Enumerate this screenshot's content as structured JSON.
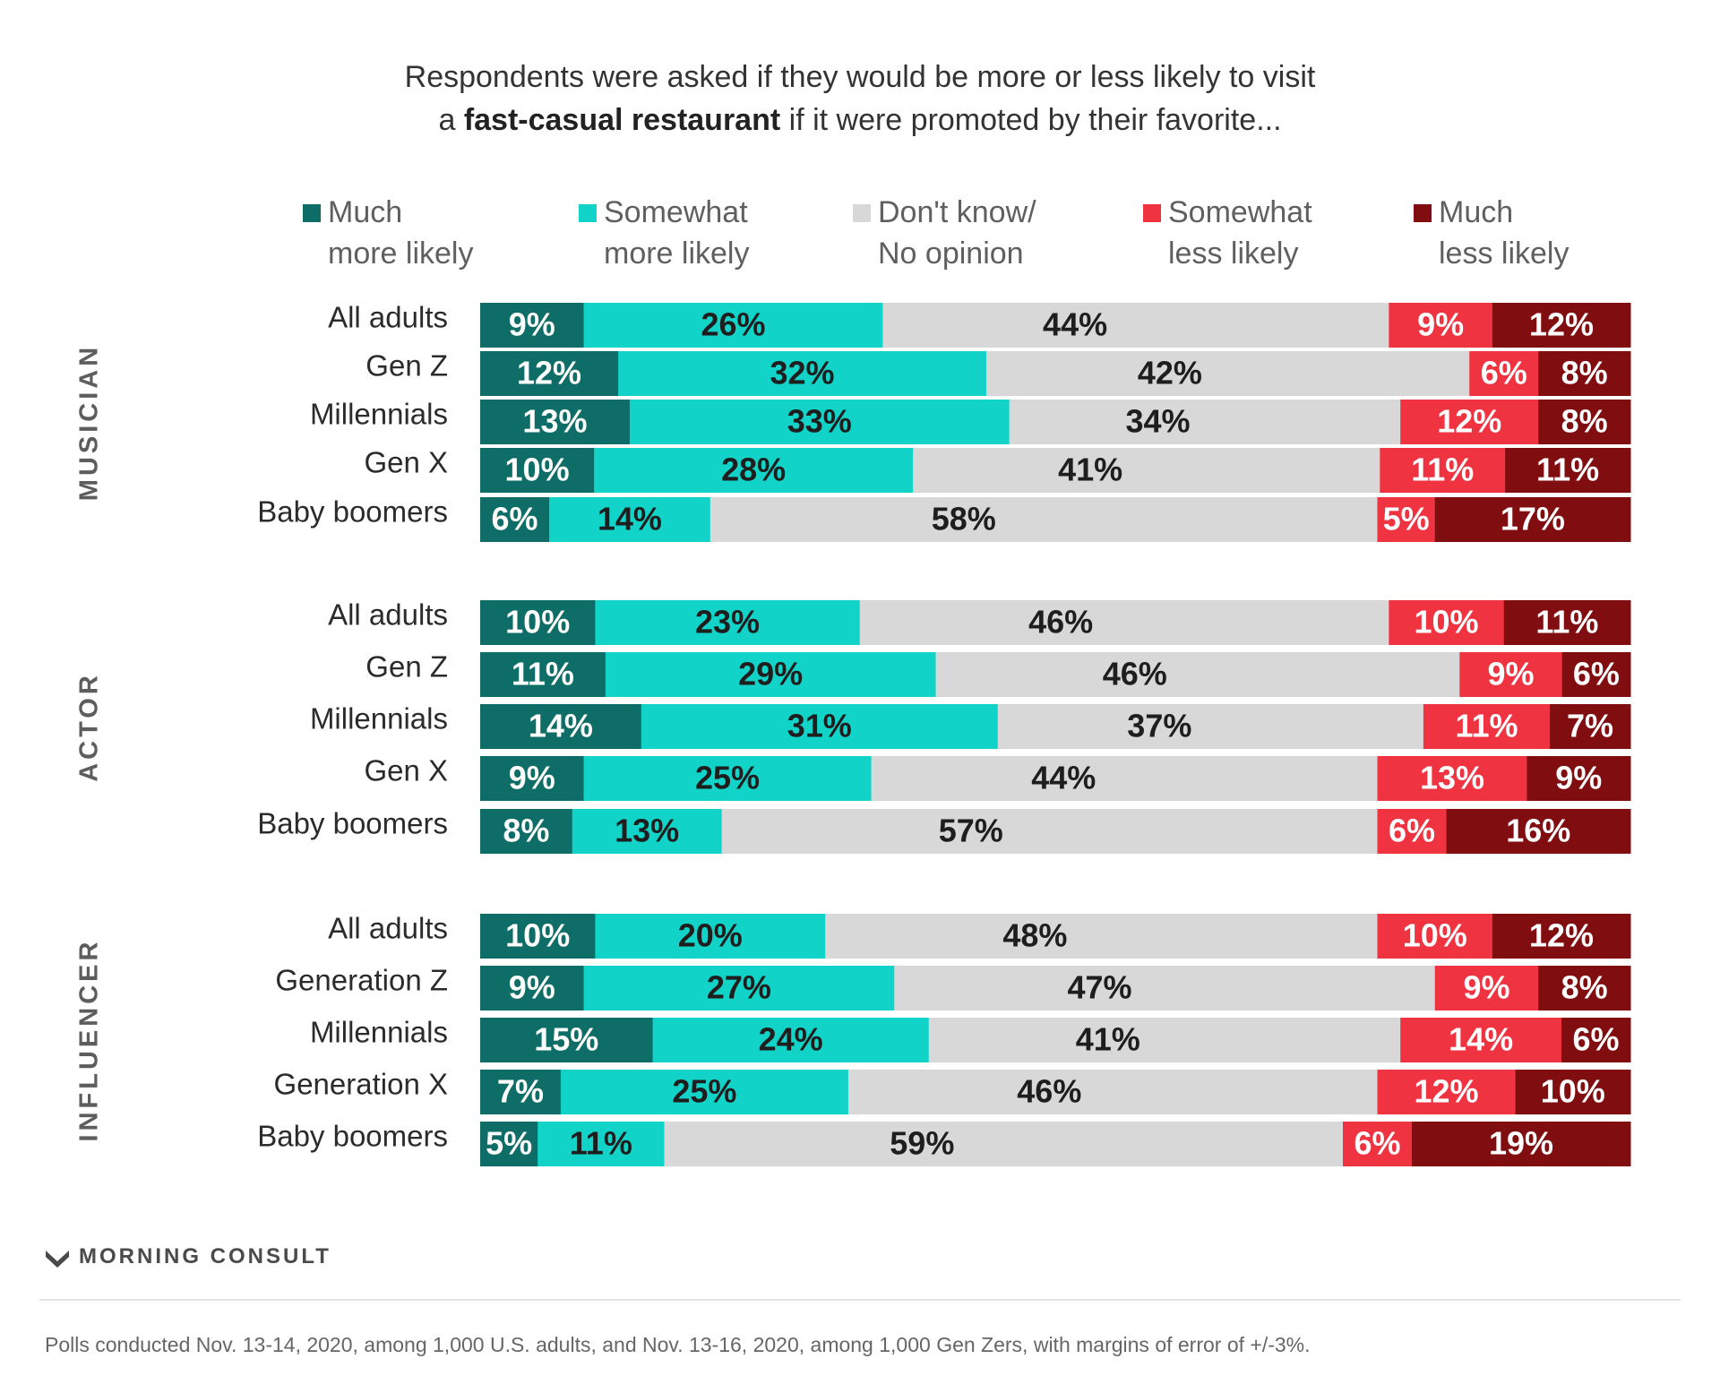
{
  "title": {
    "line1": "Respondents were asked if they would be more or less likely to visit",
    "line2_pre": "a ",
    "line2_bold": "fast-casual restaurant",
    "line2_post": " if it were promoted by their favorite..."
  },
  "colors": {
    "much_more": "#0e6d66",
    "somewhat_more": "#12d3c8",
    "dont_know": "#d8d8d8",
    "somewhat_less": "#ef3340",
    "much_less": "#800d10"
  },
  "chart_data": {
    "type": "bar",
    "orientation": "horizontal-stacked-diverging",
    "legend": [
      {
        "key": "much_more",
        "line1": "Much",
        "line2": "more likely"
      },
      {
        "key": "somewhat_more",
        "line1": "Somewhat",
        "line2": "more likely"
      },
      {
        "key": "dont_know",
        "line1": "Don't know/",
        "line2": "No opinion"
      },
      {
        "key": "somewhat_less",
        "line1": "Somewhat",
        "line2": "less likely"
      },
      {
        "key": "much_less",
        "line1": "Much",
        "line2": "less likely"
      }
    ],
    "groups": [
      {
        "name": "MUSICIAN",
        "rows": [
          {
            "label": "All adults",
            "values": [
              9,
              26,
              44,
              9,
              12
            ]
          },
          {
            "label": "Gen Z",
            "values": [
              12,
              32,
              42,
              6,
              8
            ]
          },
          {
            "label": "Millennials",
            "values": [
              13,
              33,
              34,
              12,
              8
            ]
          },
          {
            "label": "Gen X",
            "values": [
              10,
              28,
              41,
              11,
              11
            ]
          },
          {
            "label": "Baby boomers",
            "values": [
              6,
              14,
              58,
              5,
              17
            ]
          }
        ]
      },
      {
        "name": "ACTOR",
        "rows": [
          {
            "label": "All adults",
            "values": [
              10,
              23,
              46,
              10,
              11
            ]
          },
          {
            "label": "Gen Z",
            "values": [
              11,
              29,
              46,
              9,
              6
            ]
          },
          {
            "label": "Millennials",
            "values": [
              14,
              31,
              37,
              11,
              7
            ]
          },
          {
            "label": "Gen X",
            "values": [
              9,
              25,
              44,
              13,
              9
            ]
          },
          {
            "label": "Baby boomers",
            "values": [
              8,
              13,
              57,
              6,
              16
            ]
          }
        ]
      },
      {
        "name": "INFLUENCER",
        "rows": [
          {
            "label": "All adults",
            "values": [
              10,
              20,
              48,
              10,
              12
            ]
          },
          {
            "label": "Generation Z",
            "values": [
              9,
              27,
              47,
              9,
              8
            ]
          },
          {
            "label": "Millennials",
            "values": [
              15,
              24,
              41,
              14,
              6
            ]
          },
          {
            "label": "Generation X",
            "values": [
              7,
              25,
              46,
              12,
              10
            ]
          },
          {
            "label": "Baby boomers",
            "values": [
              5,
              11,
              59,
              6,
              19
            ]
          }
        ]
      }
    ],
    "value_suffix": "%"
  },
  "logo": {
    "text": "MORNING CONSULT",
    "icon": "morning-consult-logo-icon"
  },
  "footnote": "Polls conducted Nov. 13-14, 2020, among 1,000 U.S. adults, and Nov. 13-16, 2020, among 1,000 Gen Zers, with margins of error of +/-3%."
}
